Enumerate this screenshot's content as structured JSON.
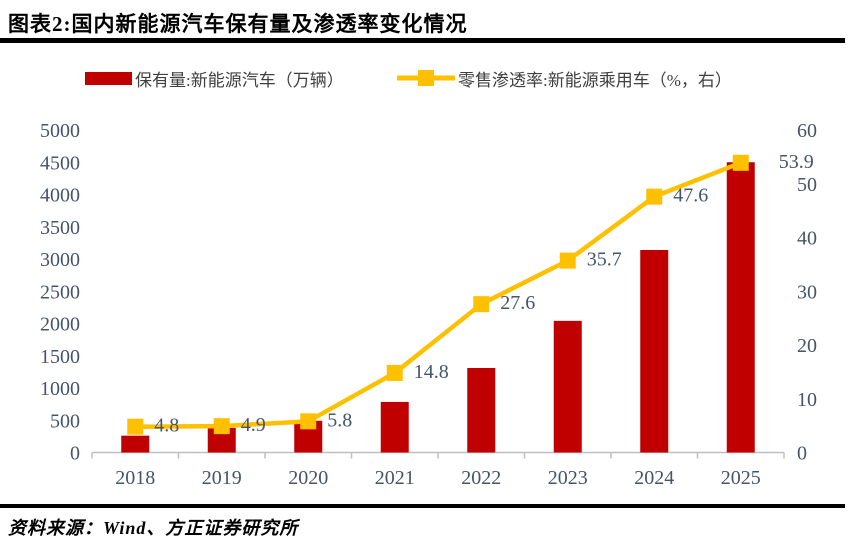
{
  "title": "图表2:国内新能源汽车保有量及渗透率变化情况",
  "source": "资料来源：Wind、方正证券研究所",
  "colors": {
    "bar": "#C00000",
    "line": "#FFC000",
    "axis_text": "#44546A",
    "axis_line": "#BFBFBF",
    "legend_text": "#3F3F3F",
    "title_text": "#000000"
  },
  "legend": [
    {
      "label": "保有量:新能源汽车（万辆）",
      "type": "bar",
      "color": "#C00000"
    },
    {
      "label": "零售渗透率:新能源乘用车（%，右）",
      "type": "line",
      "color": "#FFC000"
    }
  ],
  "chart_data": {
    "type": "bar",
    "subtype": "bar-line-combo",
    "categories": [
      "2018",
      "2019",
      "2020",
      "2021",
      "2022",
      "2023",
      "2024",
      "2025"
    ],
    "series": [
      {
        "name": "保有量:新能源汽车（万辆）",
        "type": "bar",
        "axis": "left",
        "color": "#C00000",
        "values": [
          261,
          381,
          492,
          784,
          1310,
          2041,
          3140,
          4500
        ]
      },
      {
        "name": "零售渗透率:新能源乘用车（%，右）",
        "type": "line",
        "axis": "right",
        "color": "#FFC000",
        "marker": "square",
        "values": [
          4.8,
          4.9,
          5.8,
          14.8,
          27.6,
          35.7,
          47.6,
          53.9
        ],
        "data_labels": [
          4.8,
          4.9,
          5.8,
          14.8,
          27.6,
          35.7,
          47.6,
          53.9
        ]
      }
    ],
    "left_axis": {
      "min": 0,
      "max": 5000,
      "step": 500,
      "ticks": [
        0,
        500,
        1000,
        1500,
        2000,
        2500,
        3000,
        3500,
        4000,
        4500,
        5000
      ]
    },
    "right_axis": {
      "min": 0,
      "max": 60,
      "step": 10,
      "ticks": [
        0,
        10,
        20,
        30,
        40,
        50,
        60
      ]
    },
    "grid": false,
    "legend_position": "top"
  }
}
